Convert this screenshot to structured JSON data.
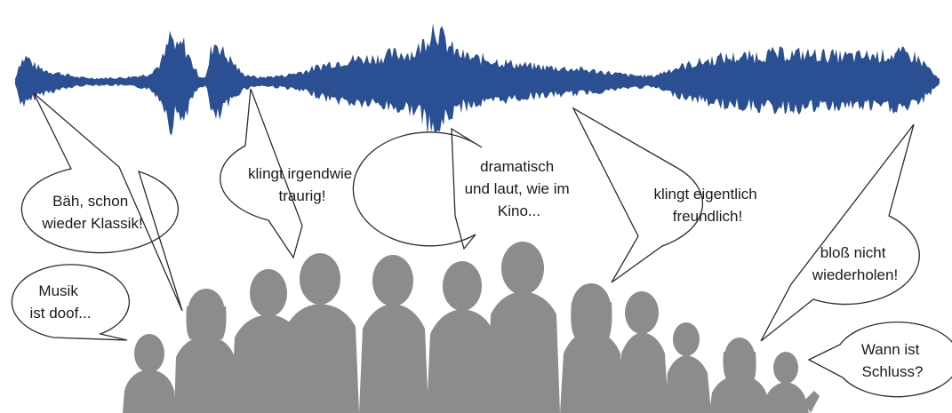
{
  "waveform": {
    "color": "#2a4f92"
  },
  "silhouettes": {
    "color": "#8c8c8a"
  },
  "bubbles": [
    {
      "id": "baeh",
      "lines": [
        "Bäh, schon",
        "wieder Klassik!"
      ]
    },
    {
      "id": "traurig",
      "lines": [
        "klingt irgendwie",
        "traurig!"
      ]
    },
    {
      "id": "kino",
      "lines": [
        "dramatisch",
        "und laut, wie im",
        "Kino..."
      ]
    },
    {
      "id": "freundlich",
      "lines": [
        "klingt eigentlich",
        "freundlich!"
      ]
    },
    {
      "id": "wiederholen",
      "lines": [
        "bloß nicht",
        "wiederholen!"
      ]
    },
    {
      "id": "doof",
      "lines": [
        "Musik",
        "ist doof..."
      ]
    },
    {
      "id": "schluss",
      "lines": [
        "Wann ist",
        "Schluss?"
      ]
    }
  ]
}
